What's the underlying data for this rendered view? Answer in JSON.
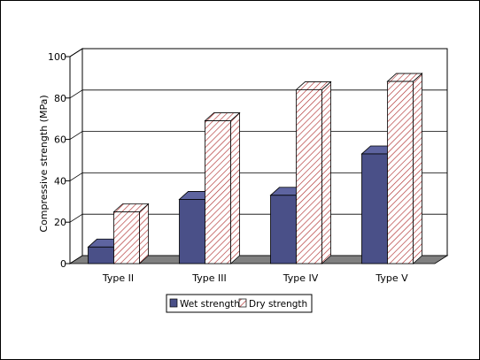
{
  "chart_data": {
    "type": "bar",
    "title": "",
    "xlabel": "",
    "ylabel": "Compressive strength (MPa)",
    "categories": [
      "Type II",
      "Type III",
      "Type IV",
      "Type V"
    ],
    "series": [
      {
        "name": "Wet strength",
        "values": [
          8,
          31,
          33,
          53
        ]
      },
      {
        "name": "Dry strength",
        "values": [
          25,
          69,
          84,
          88
        ]
      }
    ],
    "ylim": [
      0,
      100
    ],
    "yticks": [
      "0",
      "20",
      "40",
      "60",
      "80",
      "100"
    ],
    "grid": true,
    "legend": "bottom",
    "style": "3d-clustered-column",
    "colors": {
      "wet": "#4a5088",
      "dry_fill": "#ffffff",
      "dry_hatch": "#b03030",
      "floor": "#808080",
      "gridline": "#000000"
    }
  }
}
